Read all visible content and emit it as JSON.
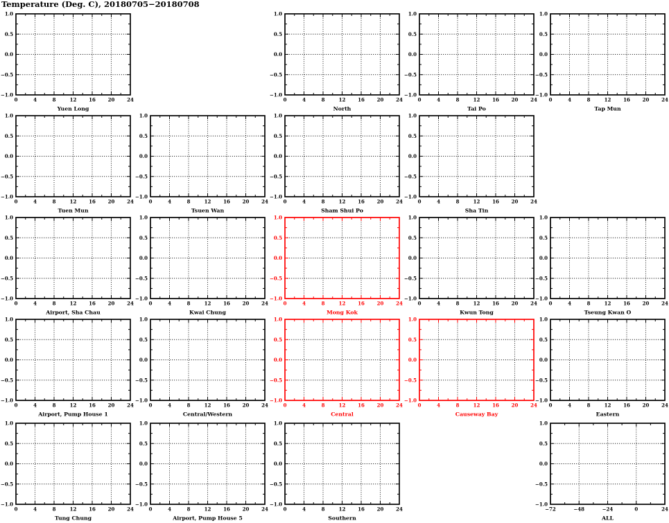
{
  "colors": {
    "default": "#000000",
    "highlight": "#ff0000",
    "background": "#ffffff"
  },
  "chart_data": {
    "type": "line",
    "title": "Temperature (Deg. C), 20180705−20180708",
    "note": "5×5 grid of small-multiple panels; every panel is an empty axes frame with dotted gridlines and no plotted data series. Panels Mong Kok, Central and Causeway Bay are drawn in red.",
    "grid": "dotted",
    "legend": "none",
    "ylim": [
      -1.0,
      1.0
    ],
    "y_ticks": [
      1.0,
      0.5,
      0.0,
      -0.5,
      -1.0
    ],
    "y_tick_labels": [
      "1.0",
      "0.5",
      "0.0",
      "−0.5",
      "−1.0"
    ],
    "subplots": [
      {
        "title": "Yuen Long",
        "row": 0,
        "col": 0,
        "color": "black",
        "xlim": [
          0,
          24
        ],
        "x_ticks": [
          0,
          4,
          8,
          12,
          16,
          20,
          24
        ],
        "x_tick_labels": [
          "0",
          "4",
          "8",
          "12",
          "16",
          "20",
          "24"
        ],
        "series": []
      },
      {
        "title": "North",
        "row": 0,
        "col": 2,
        "color": "black",
        "xlim": [
          0,
          24
        ],
        "x_ticks": [
          0,
          4,
          8,
          12,
          16,
          20,
          24
        ],
        "x_tick_labels": [
          "0",
          "4",
          "8",
          "12",
          "16",
          "20",
          "24"
        ],
        "series": []
      },
      {
        "title": "Tai Po",
        "row": 0,
        "col": 3,
        "color": "black",
        "xlim": [
          0,
          24
        ],
        "x_ticks": [
          0,
          4,
          8,
          12,
          16,
          20,
          24
        ],
        "x_tick_labels": [
          "0",
          "4",
          "8",
          "12",
          "16",
          "20",
          "24"
        ],
        "series": []
      },
      {
        "title": "Tap Mun",
        "row": 0,
        "col": 4,
        "color": "black",
        "xlim": [
          0,
          24
        ],
        "x_ticks": [
          0,
          4,
          8,
          12,
          16,
          20,
          24
        ],
        "x_tick_labels": [
          "0",
          "4",
          "8",
          "12",
          "16",
          "20",
          "24"
        ],
        "series": []
      },
      {
        "title": "Tuen Mun",
        "row": 1,
        "col": 0,
        "color": "black",
        "xlim": [
          0,
          24
        ],
        "x_ticks": [
          0,
          4,
          8,
          12,
          16,
          20,
          24
        ],
        "x_tick_labels": [
          "0",
          "4",
          "8",
          "12",
          "16",
          "20",
          "24"
        ],
        "series": []
      },
      {
        "title": "Tsuen Wan",
        "row": 1,
        "col": 1,
        "color": "black",
        "xlim": [
          0,
          24
        ],
        "x_ticks": [
          0,
          4,
          8,
          12,
          16,
          20,
          24
        ],
        "x_tick_labels": [
          "0",
          "4",
          "8",
          "12",
          "16",
          "20",
          "24"
        ],
        "series": []
      },
      {
        "title": "Sham Shui Po",
        "row": 1,
        "col": 2,
        "color": "black",
        "xlim": [
          0,
          24
        ],
        "x_ticks": [
          0,
          4,
          8,
          12,
          16,
          20,
          24
        ],
        "x_tick_labels": [
          "0",
          "4",
          "8",
          "12",
          "16",
          "20",
          "24"
        ],
        "series": []
      },
      {
        "title": "Sha Tin",
        "row": 1,
        "col": 3,
        "color": "black",
        "xlim": [
          0,
          24
        ],
        "x_ticks": [
          0,
          4,
          8,
          12,
          16,
          20,
          24
        ],
        "x_tick_labels": [
          "0",
          "4",
          "8",
          "12",
          "16",
          "20",
          "24"
        ],
        "series": []
      },
      {
        "title": "Airport, Sha Chau",
        "row": 2,
        "col": 0,
        "color": "black",
        "xlim": [
          0,
          24
        ],
        "x_ticks": [
          0,
          4,
          8,
          12,
          16,
          20,
          24
        ],
        "x_tick_labels": [
          "0",
          "4",
          "8",
          "12",
          "16",
          "20",
          "24"
        ],
        "series": []
      },
      {
        "title": "Kwai Chung",
        "row": 2,
        "col": 1,
        "color": "black",
        "xlim": [
          0,
          24
        ],
        "x_ticks": [
          0,
          4,
          8,
          12,
          16,
          20,
          24
        ],
        "x_tick_labels": [
          "0",
          "4",
          "8",
          "12",
          "16",
          "20",
          "24"
        ],
        "series": []
      },
      {
        "title": "Mong Kok",
        "row": 2,
        "col": 2,
        "color": "red",
        "xlim": [
          0,
          24
        ],
        "x_ticks": [
          0,
          4,
          8,
          12,
          16,
          20,
          24
        ],
        "x_tick_labels": [
          "0",
          "4",
          "8",
          "12",
          "16",
          "20",
          "24"
        ],
        "series": []
      },
      {
        "title": "Kwun Tong",
        "row": 2,
        "col": 3,
        "color": "black",
        "xlim": [
          0,
          24
        ],
        "x_ticks": [
          0,
          4,
          8,
          12,
          16,
          20,
          24
        ],
        "x_tick_labels": [
          "0",
          "4",
          "8",
          "12",
          "16",
          "20",
          "24"
        ],
        "series": []
      },
      {
        "title": "Tseung Kwan O",
        "row": 2,
        "col": 4,
        "color": "black",
        "xlim": [
          0,
          24
        ],
        "x_ticks": [
          0,
          4,
          8,
          12,
          16,
          20,
          24
        ],
        "x_tick_labels": [
          "0",
          "4",
          "8",
          "12",
          "16",
          "20",
          "24"
        ],
        "series": []
      },
      {
        "title": "Airport, Pump House 1",
        "row": 3,
        "col": 0,
        "color": "black",
        "xlim": [
          0,
          24
        ],
        "x_ticks": [
          0,
          4,
          8,
          12,
          16,
          20,
          24
        ],
        "x_tick_labels": [
          "0",
          "4",
          "8",
          "12",
          "16",
          "20",
          "24"
        ],
        "series": []
      },
      {
        "title": "Central/Western",
        "row": 3,
        "col": 1,
        "color": "black",
        "xlim": [
          0,
          24
        ],
        "x_ticks": [
          0,
          4,
          8,
          12,
          16,
          20,
          24
        ],
        "x_tick_labels": [
          "0",
          "4",
          "8",
          "12",
          "16",
          "20",
          "24"
        ],
        "series": []
      },
      {
        "title": "Central",
        "row": 3,
        "col": 2,
        "color": "red",
        "xlim": [
          0,
          24
        ],
        "x_ticks": [
          0,
          4,
          8,
          12,
          16,
          20,
          24
        ],
        "x_tick_labels": [
          "0",
          "4",
          "8",
          "12",
          "16",
          "20",
          "24"
        ],
        "series": []
      },
      {
        "title": "Causeway Bay",
        "row": 3,
        "col": 3,
        "color": "red",
        "xlim": [
          0,
          24
        ],
        "x_ticks": [
          0,
          4,
          8,
          12,
          16,
          20,
          24
        ],
        "x_tick_labels": [
          "0",
          "4",
          "8",
          "12",
          "16",
          "20",
          "24"
        ],
        "series": []
      },
      {
        "title": "Eastern",
        "row": 3,
        "col": 4,
        "color": "black",
        "xlim": [
          0,
          24
        ],
        "x_ticks": [
          0,
          4,
          8,
          12,
          16,
          20,
          24
        ],
        "x_tick_labels": [
          "0",
          "4",
          "8",
          "12",
          "16",
          "20",
          "24"
        ],
        "series": []
      },
      {
        "title": "Tung Chung",
        "row": 4,
        "col": 0,
        "color": "black",
        "xlim": [
          0,
          24
        ],
        "x_ticks": [
          0,
          4,
          8,
          12,
          16,
          20,
          24
        ],
        "x_tick_labels": [
          "0",
          "4",
          "8",
          "12",
          "16",
          "20",
          "24"
        ],
        "series": []
      },
      {
        "title": "Airport, Pump House 5",
        "row": 4,
        "col": 1,
        "color": "black",
        "xlim": [
          0,
          24
        ],
        "x_ticks": [
          0,
          4,
          8,
          12,
          16,
          20,
          24
        ],
        "x_tick_labels": [
          "0",
          "4",
          "8",
          "12",
          "16",
          "20",
          "24"
        ],
        "series": []
      },
      {
        "title": "Southern",
        "row": 4,
        "col": 2,
        "color": "black",
        "xlim": [
          0,
          24
        ],
        "x_ticks": [
          0,
          4,
          8,
          12,
          16,
          20,
          24
        ],
        "x_tick_labels": [
          "0",
          "4",
          "8",
          "12",
          "16",
          "20",
          "24"
        ],
        "series": []
      },
      {
        "title": "ALL",
        "row": 4,
        "col": 4,
        "color": "black",
        "xlim": [
          -72,
          24
        ],
        "x_ticks": [
          -72,
          -48,
          -24,
          0,
          24
        ],
        "x_tick_labels": [
          "−72",
          "−48",
          "−24",
          "0",
          "24"
        ],
        "series": []
      }
    ]
  }
}
